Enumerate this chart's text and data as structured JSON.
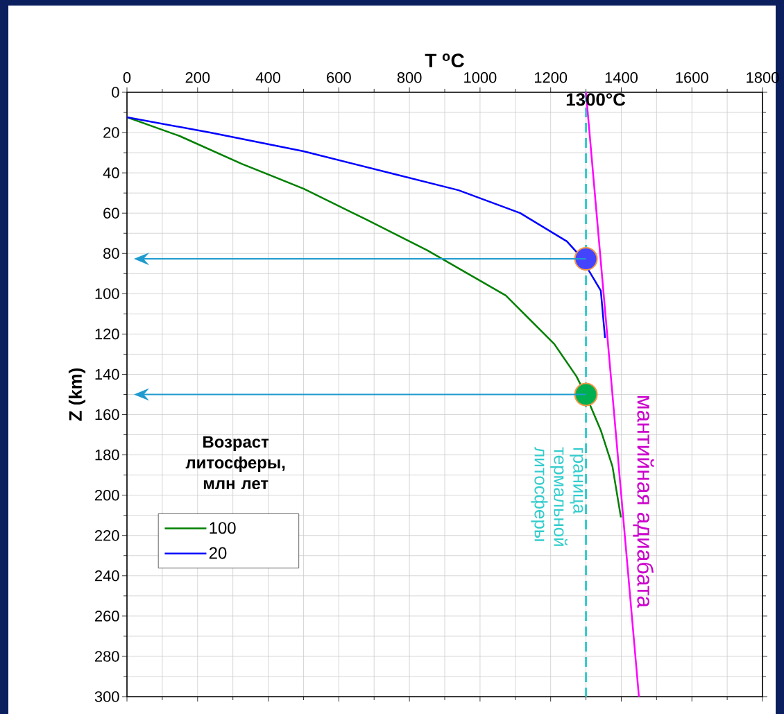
{
  "chart_data": {
    "type": "line",
    "xlabel": "T $^{o}$C",
    "ylabel": "Z (km)",
    "legend_title": "Возраст литосферы, млн лет",
    "legend": "left",
    "grid": true,
    "xlim": [
      0,
      1800
    ],
    "ylim": [
      300,
      0
    ],
    "xticks": [
      0,
      200,
      400,
      600,
      800,
      1000,
      1200,
      1400,
      1600,
      1800
    ],
    "yticks": [
      0,
      20,
      40,
      60,
      80,
      100,
      120,
      140,
      160,
      180,
      200,
      220,
      240,
      260,
      280,
      300
    ],
    "series": [
      {
        "name": "100",
        "color": "#008000",
        "x": [
          0,
          149,
          325,
          501,
          676,
          851,
          1073,
          1210,
          1273,
          1299,
          1342,
          1375,
          1399
        ],
        "values": [
          12.4,
          21.7,
          35.5,
          47.9,
          63,
          78.5,
          100.9,
          124.9,
          141,
          150,
          167.8,
          185.7,
          211
        ]
      },
      {
        "name": "20",
        "color": "#0000ff",
        "x": [
          0,
          238,
          500,
          764,
          939,
          1114,
          1246,
          1291,
          1308,
          1342,
          1354
        ],
        "values": [
          12.4,
          20.1,
          29.3,
          40.9,
          48.6,
          60,
          74,
          82.7,
          88.5,
          98.5,
          122
        ]
      },
      {
        "color": "#ff00ff",
        "x": [
          1300,
          1450
        ],
        "values": [
          0,
          300
        ]
      },
      {
        "type": "scatter",
        "colors": [
          "#4444ff",
          "#00b050"
        ],
        "x": [
          1300,
          1300
        ],
        "values": [
          82.7,
          150
        ]
      }
    ],
    "ref_lines": [
      {
        "axis": "x",
        "value": 1300,
        "label": "граница термальной литосферы",
        "color": "#33cccc",
        "line_style": "dashed"
      }
    ],
    "annotations": [
      {
        "text": "1300°C",
        "x": 1300,
        "y": 0
      },
      "мантийная адиабата"
    ]
  }
}
